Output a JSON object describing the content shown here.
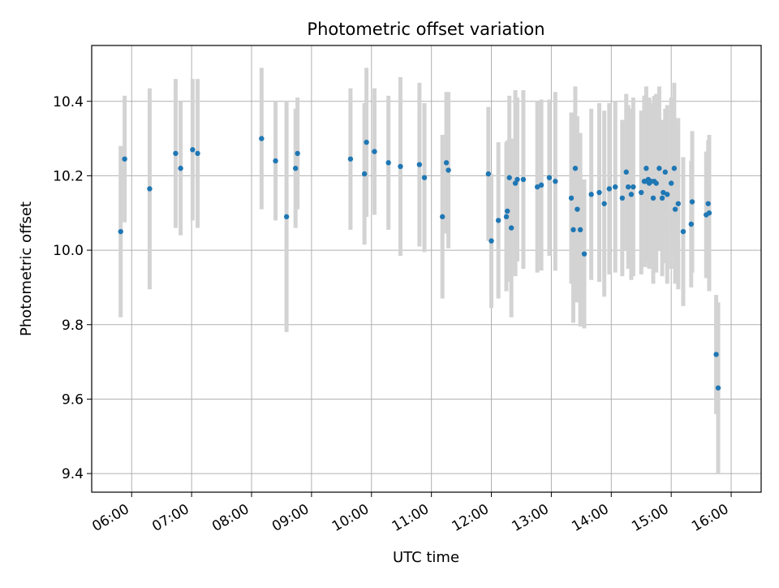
{
  "chart_data": {
    "type": "scatter",
    "title": "Photometric offset variation",
    "xlabel": "UTC time",
    "ylabel": "Photometric offset",
    "x_axis_type": "time",
    "xlim": [
      "05:20",
      "16:30"
    ],
    "ylim": [
      9.35,
      10.55
    ],
    "x_tick_labels": [
      "06:00",
      "07:00",
      "08:00",
      "09:00",
      "10:00",
      "11:00",
      "12:00",
      "13:00",
      "14:00",
      "15:00",
      "16:00"
    ],
    "y_tick_labels": [
      "9.4",
      "9.6",
      "9.8",
      "10.0",
      "10.2",
      "10.4"
    ],
    "y_ticks": [
      9.4,
      9.6,
      9.8,
      10.0,
      10.2,
      10.4
    ],
    "grid": true,
    "legend": false,
    "colors": {
      "marker": "#1f77b4",
      "errorbar": "#d3d3d3",
      "grid": "#b0b0b0"
    },
    "series": [
      {
        "x": [
          "05:49",
          "05:53",
          "06:18",
          "06:44",
          "06:49",
          "07:01",
          "07:06",
          "08:10",
          "08:24",
          "08:35",
          "08:44",
          "08:46",
          "09:39",
          "09:53",
          "09:55",
          "10:03",
          "10:17",
          "10:29",
          "10:48",
          "10:53",
          "11:11",
          "11:15",
          "11:17",
          "11:57",
          "12:00",
          "12:07",
          "12:15",
          "12:16",
          "12:18",
          "12:20",
          "12:24",
          "12:26",
          "12:32",
          "12:46",
          "12:50",
          "12:58",
          "13:04",
          "13:20",
          "13:22",
          "13:24",
          "13:26",
          "13:29",
          "13:33",
          "13:40",
          "13:48",
          "13:53",
          "13:58",
          "14:04",
          "14:11",
          "14:15",
          "14:17",
          "14:20",
          "14:22",
          "14:30",
          "14:33",
          "14:34",
          "14:35",
          "14:37",
          "14:38",
          "14:40",
          "14:42",
          "14:43",
          "14:45",
          "14:48",
          "14:51",
          "14:52",
          "14:54",
          "14:56",
          "15:00",
          "15:03",
          "15:04",
          "15:07",
          "15:12",
          "15:20",
          "15:21",
          "15:35",
          "15:37",
          "15:38",
          "15:45",
          "15:47"
        ],
        "y": [
          10.05,
          10.245,
          10.165,
          10.26,
          10.22,
          10.27,
          10.26,
          10.3,
          10.24,
          10.09,
          10.22,
          10.26,
          10.245,
          10.205,
          10.29,
          10.265,
          10.235,
          10.225,
          10.23,
          10.195,
          10.09,
          10.235,
          10.215,
          10.205,
          10.025,
          10.08,
          10.09,
          10.105,
          10.195,
          10.06,
          10.18,
          10.19,
          10.19,
          10.17,
          10.175,
          10.195,
          10.185,
          10.14,
          10.055,
          10.22,
          10.11,
          10.055,
          9.99,
          10.15,
          10.155,
          10.125,
          10.165,
          10.17,
          10.14,
          10.21,
          10.17,
          10.15,
          10.17,
          10.155,
          10.185,
          10.185,
          10.22,
          10.19,
          10.18,
          10.185,
          10.14,
          10.185,
          10.18,
          10.22,
          10.14,
          10.155,
          10.21,
          10.15,
          10.18,
          10.22,
          10.11,
          10.125,
          10.05,
          10.07,
          10.13,
          10.095,
          10.125,
          10.1,
          9.72,
          9.63
        ],
        "yerr": [
          0.23,
          0.17,
          0.27,
          0.2,
          0.18,
          0.19,
          0.2,
          0.19,
          0.16,
          0.31,
          0.16,
          0.15,
          0.19,
          0.19,
          0.2,
          0.17,
          0.18,
          0.24,
          0.22,
          0.2,
          0.22,
          0.19,
          0.21,
          0.18,
          0.18,
          0.21,
          0.2,
          0.19,
          0.22,
          0.24,
          0.25,
          0.22,
          0.24,
          0.23,
          0.23,
          0.21,
          0.24,
          0.23,
          0.25,
          0.22,
          0.25,
          0.26,
          0.2,
          0.23,
          0.24,
          0.25,
          0.23,
          0.23,
          0.21,
          0.21,
          0.22,
          0.23,
          0.24,
          0.22,
          0.23,
          0.23,
          0.22,
          0.22,
          0.23,
          0.21,
          0.23,
          0.23,
          0.24,
          0.22,
          0.21,
          0.19,
          0.17,
          0.24,
          0.23,
          0.23,
          0.2,
          0.23,
          0.2,
          0.17,
          0.19,
          0.17,
          0.17,
          0.21,
          0.16,
          0.23
        ]
      }
    ]
  }
}
